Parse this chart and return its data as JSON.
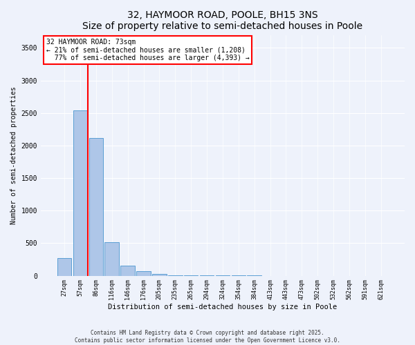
{
  "title": "32, HAYMOOR ROAD, POOLE, BH15 3NS",
  "subtitle": "Size of property relative to semi-detached houses in Poole",
  "xlabel": "Distribution of semi-detached houses by size in Poole",
  "ylabel": "Number of semi-detached properties",
  "categories": [
    "27sqm",
    "57sqm",
    "86sqm",
    "116sqm",
    "146sqm",
    "176sqm",
    "205sqm",
    "235sqm",
    "265sqm",
    "294sqm",
    "324sqm",
    "354sqm",
    "384sqm",
    "413sqm",
    "443sqm",
    "473sqm",
    "502sqm",
    "532sqm",
    "562sqm",
    "591sqm",
    "621sqm"
  ],
  "values": [
    270,
    2540,
    2120,
    510,
    155,
    65,
    30,
    10,
    5,
    3,
    2,
    1,
    1,
    0,
    0,
    0,
    0,
    0,
    0,
    0,
    0
  ],
  "bar_color": "#aec6e8",
  "bar_edge_color": "#5a9fd4",
  "vline_x": 1.5,
  "vline_color": "red",
  "property_label": "32 HAYMOOR ROAD: 73sqm",
  "pct_smaller": 21,
  "pct_larger": 77,
  "count_smaller": 1208,
  "count_larger": 4393,
  "ylim": [
    0,
    3700
  ],
  "yticks": [
    0,
    500,
    1000,
    1500,
    2000,
    2500,
    3000,
    3500
  ],
  "footer_line1": "Contains HM Land Registry data © Crown copyright and database right 2025.",
  "footer_line2": "Contains public sector information licensed under the Open Government Licence v3.0.",
  "bg_color": "#eef2fb",
  "grid_color": "#ffffff",
  "title_fontsize": 10,
  "subtitle_fontsize": 8.5,
  "tick_fontsize": 6,
  "ylabel_fontsize": 7,
  "xlabel_fontsize": 7.5,
  "ann_fontsize": 7,
  "footer_fontsize": 5.5
}
